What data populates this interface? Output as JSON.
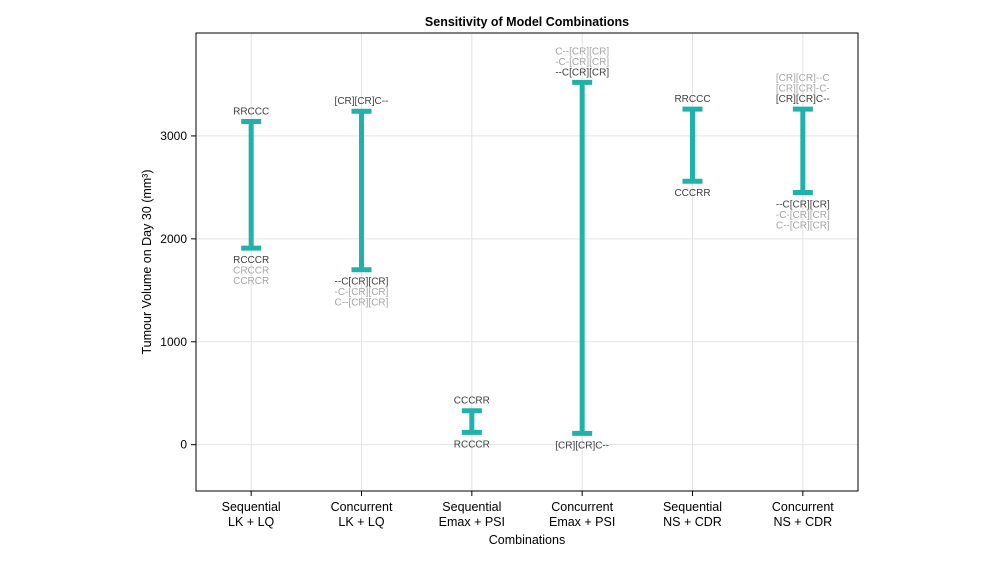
{
  "chart_data": {
    "type": "errorbar",
    "title": "Sensitivity of Model Combinations",
    "xlabel": "Combinations",
    "ylabel": "Tumour Volume on Day 30 (mm³)",
    "ylim": [
      -450,
      4000
    ],
    "yticks": [
      0,
      1000,
      2000,
      3000
    ],
    "grid": true,
    "color": "#20b2aa",
    "annotation_colors": {
      "primary": "#404040",
      "secondary": "#a6a6a6"
    },
    "categories": [
      {
        "line1": "Sequential",
        "line2": "LK + LQ",
        "max": 3140,
        "min": 1910,
        "upper_labels": [
          "RRCCC"
        ],
        "lower_labels": [
          "RCCCR",
          "CRCCR",
          "CCRCR"
        ]
      },
      {
        "line1": "Concurrent",
        "line2": "LK + LQ",
        "max": 3240,
        "min": 1700,
        "upper_labels": [
          "[CR][CR]C--"
        ],
        "lower_labels": [
          "--C[CR][CR]",
          "-C-[CR][CR]",
          "C--[CR][CR]"
        ]
      },
      {
        "line1": "Sequential",
        "line2": "Emax + PSI",
        "max": 330,
        "min": 120,
        "upper_labels": [
          "CCCRR"
        ],
        "lower_labels": [
          "RCCCR"
        ]
      },
      {
        "line1": "Concurrent",
        "line2": "Emax + PSI",
        "max": 3520,
        "min": 110,
        "upper_labels": [
          "C--[CR][CR]",
          "-C-[CR][CR]",
          "--C[CR][CR]"
        ],
        "lower_labels": [
          "[CR][CR]C--"
        ]
      },
      {
        "line1": "Sequential",
        "line2": "NS + CDR",
        "max": 3260,
        "min": 2560,
        "upper_labels": [
          "RRCCC"
        ],
        "lower_labels": [
          "CCCRR"
        ]
      },
      {
        "line1": "Concurrent",
        "line2": "NS + CDR",
        "max": 3260,
        "min": 2450,
        "upper_labels": [
          "[CR][CR]--C",
          "[CR][CR]-C-",
          "[CR][CR]C--"
        ],
        "lower_labels": [
          "--C[CR][CR]",
          "-C-[CR][CR]",
          "C--[CR][CR]"
        ]
      }
    ]
  }
}
